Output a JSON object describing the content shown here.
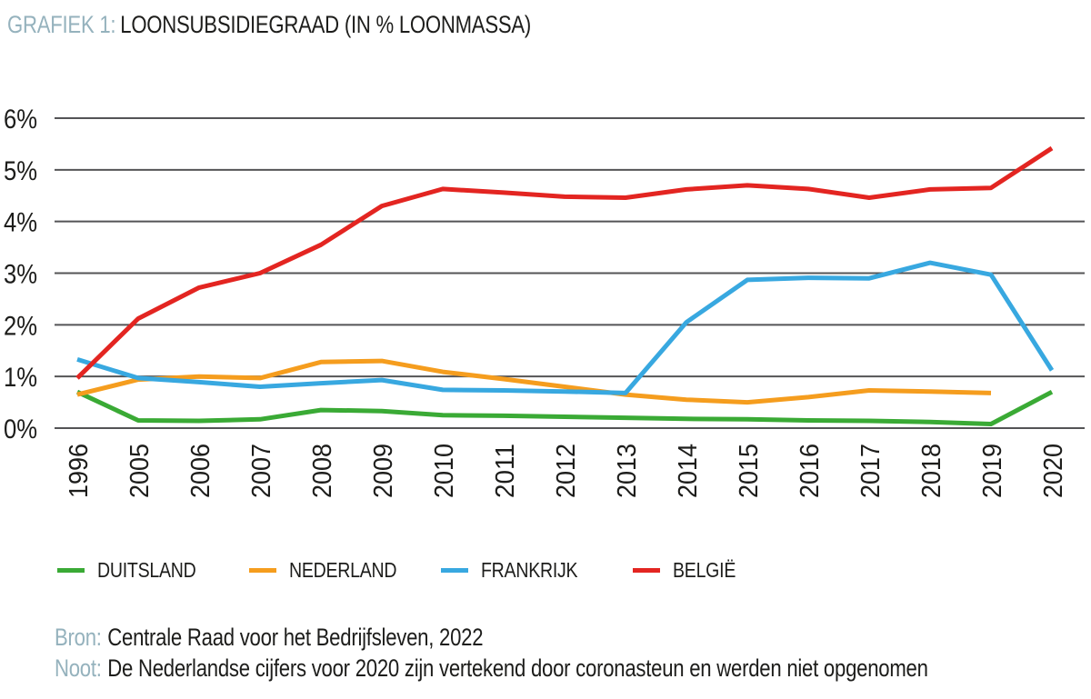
{
  "header": {
    "label": "GRAFIEK 1:",
    "title": "LOONSUBSIDIEGRAAD (IN % LOONMASSA)"
  },
  "footer": {
    "source_label": "Bron:",
    "source_text": "Centrale Raad voor het Bedrijfsleven, 2022",
    "note_label": "Noot:",
    "note_text": "De Nederlandse cijfers voor 2020 zijn vertekend door coronasteun en werden niet opgenomen"
  },
  "colors": {
    "accent": "#95b2bd",
    "text": "#1d1d1b",
    "grid": "#545456",
    "background": "#ffffff"
  },
  "chart_data": {
    "type": "line",
    "title": "LOONSUBSIDIEGRAAD (IN % LOONMASSA)",
    "categories": [
      "1996",
      "2005",
      "2006",
      "2007",
      "2008",
      "2009",
      "2010",
      "2011",
      "2012",
      "2013",
      "2014",
      "2015",
      "2016",
      "2017",
      "2018",
      "2019",
      "2020"
    ],
    "series": [
      {
        "name": "DUITSLAND",
        "color": "#3aaa35",
        "values": [
          0.7,
          0.15,
          0.14,
          0.17,
          0.35,
          0.33,
          0.25,
          0.24,
          0.22,
          0.2,
          0.18,
          0.17,
          0.15,
          0.14,
          0.12,
          0.08,
          0.7
        ]
      },
      {
        "name": "NEDERLAND",
        "color": "#f59d1e",
        "values": [
          0.65,
          0.94,
          1.0,
          0.97,
          1.28,
          1.3,
          1.09,
          0.95,
          0.8,
          0.65,
          0.55,
          0.5,
          0.6,
          0.73,
          0.71,
          0.68,
          null
        ]
      },
      {
        "name": "FRANKRIJK",
        "color": "#38a8e0",
        "values": [
          1.33,
          0.97,
          0.89,
          0.8,
          0.87,
          0.93,
          0.74,
          0.73,
          0.71,
          0.68,
          2.05,
          2.87,
          2.91,
          2.9,
          3.2,
          2.97,
          1.12
        ]
      },
      {
        "name": "BELGIË",
        "color": "#e32521",
        "values": [
          0.97,
          2.12,
          2.72,
          3.0,
          3.55,
          4.3,
          4.63,
          4.56,
          4.48,
          4.46,
          4.62,
          4.7,
          4.63,
          4.46,
          4.62,
          4.65,
          5.42
        ]
      }
    ],
    "ylim": [
      0,
      6
    ],
    "ytick_labels": [
      "0%",
      "1%",
      "2%",
      "3%",
      "4%",
      "5%",
      "6%"
    ],
    "xlabel": "",
    "ylabel": "",
    "grid": true,
    "legend_position": "bottom"
  }
}
